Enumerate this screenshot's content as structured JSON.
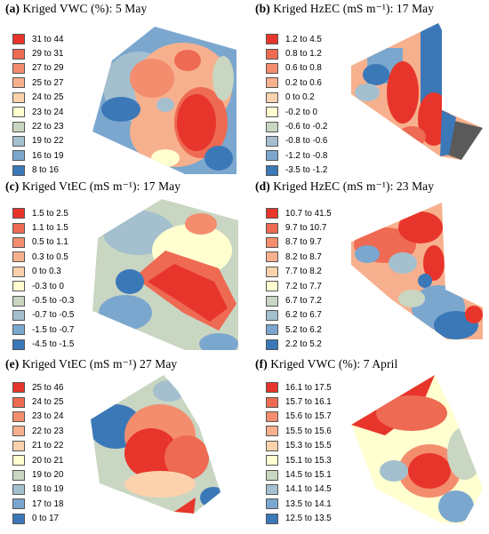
{
  "panels": [
    {
      "letter": "(a)",
      "title": "Kriged VWC (%): 5 May",
      "legend": [
        {
          "label": "31 to 44",
          "color": "#e8352b"
        },
        {
          "label": "29 to 31",
          "color": "#ee6a52"
        },
        {
          "label": "27 to 29",
          "color": "#f38d6e"
        },
        {
          "label": "25 to 27",
          "color": "#f7b08d"
        },
        {
          "label": "24 to 25",
          "color": "#fbd2ad"
        },
        {
          "label": "23 to 24",
          "color": "#ffffd0"
        },
        {
          "label": "22 to 23",
          "color": "#c9d6c2"
        },
        {
          "label": "19 to 22",
          "color": "#a4bfce"
        },
        {
          "label": "16 to 19",
          "color": "#7ba7cf"
        },
        {
          "label": "8 to 16",
          "color": "#3b78b8"
        }
      ]
    },
    {
      "letter": "(b)",
      "title": "Kriged HzEC (mS m⁻¹): 17 May",
      "legend": [
        {
          "label": "1.2 to 4.5",
          "color": "#e8352b"
        },
        {
          "label": "0.8 to 1.2",
          "color": "#ee6a52"
        },
        {
          "label": "0.6 to 0.8",
          "color": "#f38d6e"
        },
        {
          "label": "0.2 to 0.6",
          "color": "#f7b08d"
        },
        {
          "label": "0 to 0.2",
          "color": "#fbd2ad"
        },
        {
          "label": "-0.2 to 0",
          "color": "#ffffd0"
        },
        {
          "label": "-0.6 to -0.2",
          "color": "#c9d6c2"
        },
        {
          "label": "-0.8 to -0.6",
          "color": "#a4bfce"
        },
        {
          "label": "-1.2 to -0.8",
          "color": "#7ba7cf"
        },
        {
          "label": "-3.5 to -1.2",
          "color": "#3b78b8"
        }
      ]
    },
    {
      "letter": "(c)",
      "title": "Kriged VtEC (mS m⁻¹): 17 May",
      "legend": [
        {
          "label": "1.5 to 2.5",
          "color": "#e8352b"
        },
        {
          "label": "1.1 to 1.5",
          "color": "#ee6a52"
        },
        {
          "label": "0.5 to 1.1",
          "color": "#f38d6e"
        },
        {
          "label": "0.3 to 0.5",
          "color": "#f7b08d"
        },
        {
          "label": "0 to 0.3",
          "color": "#fbd2ad"
        },
        {
          "label": "-0.3 to 0",
          "color": "#ffffd0"
        },
        {
          "label": "-0.5 to -0.3",
          "color": "#c9d6c2"
        },
        {
          "label": "-0.7 to -0.5",
          "color": "#a4bfce"
        },
        {
          "label": "-1.5 to -0.7",
          "color": "#7ba7cf"
        },
        {
          "label": "-4.5 to -1.5",
          "color": "#3b78b8"
        }
      ]
    },
    {
      "letter": "(d)",
      "title": "Kriged HzEC (mS m⁻¹): 23 May",
      "legend": [
        {
          "label": "10.7 to 41.5",
          "color": "#e8352b"
        },
        {
          "label": "9.7 to 10.7",
          "color": "#ee6a52"
        },
        {
          "label": "8.7 to 9.7",
          "color": "#f38d6e"
        },
        {
          "label": "8.2 to 8.7",
          "color": "#f7b08d"
        },
        {
          "label": "7.7 to 8.2",
          "color": "#fbd2ad"
        },
        {
          "label": "7.2 to 7.7",
          "color": "#ffffd0"
        },
        {
          "label": "6.7 to 7.2",
          "color": "#c9d6c2"
        },
        {
          "label": "6.2 to 6.7",
          "color": "#a4bfce"
        },
        {
          "label": "5.2 to 6.2",
          "color": "#7ba7cf"
        },
        {
          "label": "2.2 to 5.2",
          "color": "#3b78b8"
        }
      ]
    },
    {
      "letter": "(e)",
      "title": "Kriged VtEC (mS m⁻¹) 27 May",
      "legend": [
        {
          "label": "25 to 46",
          "color": "#e8352b"
        },
        {
          "label": "24 to 25",
          "color": "#ee6a52"
        },
        {
          "label": "23 to 24",
          "color": "#f38d6e"
        },
        {
          "label": "22 to 23",
          "color": "#f7b08d"
        },
        {
          "label": "21 to 22",
          "color": "#fbd2ad"
        },
        {
          "label": "20 to 21",
          "color": "#ffffd0"
        },
        {
          "label": "19 to 20",
          "color": "#c9d6c2"
        },
        {
          "label": "18 to 19",
          "color": "#a4bfce"
        },
        {
          "label": "17 to 18",
          "color": "#7ba7cf"
        },
        {
          "label": "0 to 17",
          "color": "#3b78b8"
        }
      ]
    },
    {
      "letter": "(f)",
      "title": "Kriged VWC (%): 7 April",
      "legend": [
        {
          "label": "16.1 to 17.5",
          "color": "#e8352b"
        },
        {
          "label": "15.7 to 16.1",
          "color": "#ee6a52"
        },
        {
          "label": "15.6 to 15.7",
          "color": "#f38d6e"
        },
        {
          "label": "15.5 to 15.6",
          "color": "#f7b08d"
        },
        {
          "label": "15.3 to 15.5",
          "color": "#fbd2ad"
        },
        {
          "label": "15.1 to 15.3",
          "color": "#ffffd0"
        },
        {
          "label": "14.5 to 15.1",
          "color": "#c9d6c2"
        },
        {
          "label": "14.1 to 14.5",
          "color": "#a4bfce"
        },
        {
          "label": "13.5 to 14.1",
          "color": "#7ba7cf"
        },
        {
          "label": "12.5 to 13.5",
          "color": "#3b78b8"
        }
      ]
    }
  ]
}
